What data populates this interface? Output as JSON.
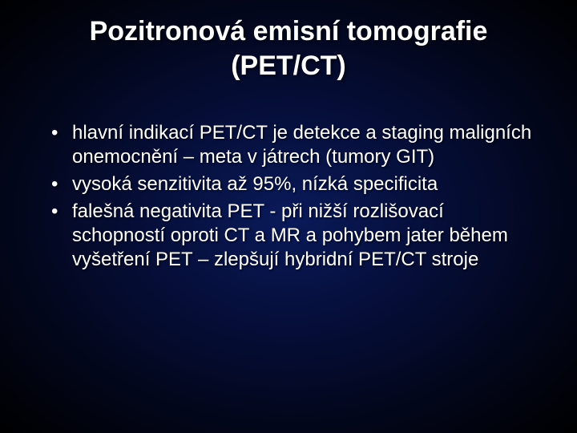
{
  "slide": {
    "title": "Pozitronová emisní tomografie (PET/CT)",
    "title_fontsize": 34,
    "title_color": "#ffffff",
    "bullets": [
      "hlavní indikací PET/CT je detekce a staging maligních onemocnění – meta v játrech (tumory GIT)",
      "vysoká senzitivita až 95%, nízká specificita",
      "falešná negativita PET - při nižší rozlišovací schopností oproti CT a MR a pohybem jater během vyšetření PET – zlepšují hybridní PET/CT stroje"
    ],
    "bullet_fontsize": 24,
    "bullet_color": "#ffffff",
    "background": {
      "type": "radial-gradient",
      "center_color": "#0a1a5a",
      "mid_color": "#050d35",
      "outer_color": "#020619",
      "edge_color": "#000000"
    },
    "text_shadow_color": "#000000",
    "font_family": "Arial"
  }
}
